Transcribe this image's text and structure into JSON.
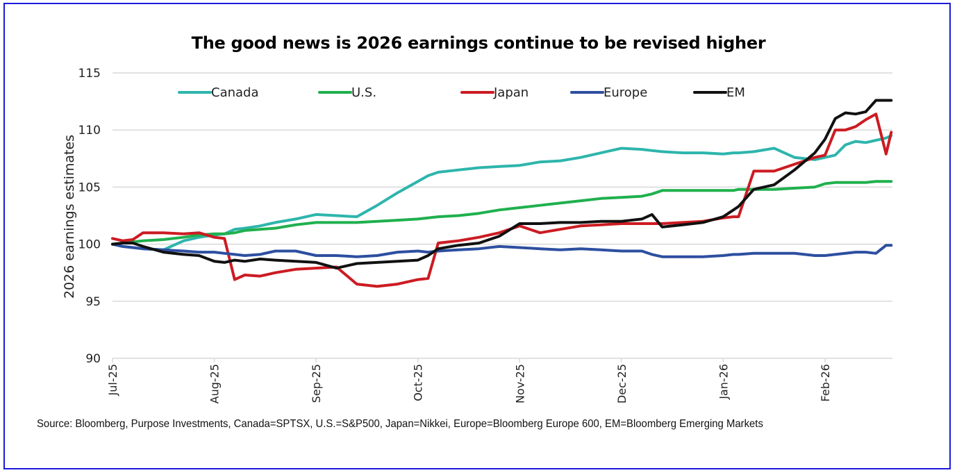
{
  "chart_data": {
    "type": "line",
    "title": "The good news is 2026 earnings continue to be revised higher",
    "xlabel": "",
    "ylabel": "2026 earnings estimates",
    "ylim": [
      90,
      115
    ],
    "yticks": [
      90,
      95,
      100,
      105,
      110,
      115
    ],
    "xticks": [
      "Jul-25",
      "Aug-25",
      "Sep-25",
      "Oct-25",
      "Nov-25",
      "Dec-25",
      "Jan-26",
      "Feb-26"
    ],
    "xlim_months": [
      0,
      7.65
    ],
    "grid": true,
    "legend_position": "top",
    "x": [
      0,
      0.1,
      0.2,
      0.3,
      0.5,
      0.7,
      0.85,
      1.0,
      1.1,
      1.2,
      1.3,
      1.45,
      1.6,
      1.8,
      2.0,
      2.2,
      2.4,
      2.6,
      2.8,
      3.0,
      3.1,
      3.2,
      3.4,
      3.6,
      3.8,
      4.0,
      4.2,
      4.4,
      4.6,
      4.8,
      5.0,
      5.2,
      5.3,
      5.4,
      5.6,
      5.8,
      6.0,
      6.1,
      6.15,
      6.3,
      6.5,
      6.7,
      6.9,
      7.0,
      7.1,
      7.2,
      7.3,
      7.4,
      7.5,
      7.6,
      7.65
    ],
    "series": [
      {
        "name": "Canada",
        "color": "#2eb5ac",
        "values": [
          100.0,
          99.8,
          99.7,
          99.6,
          99.5,
          100.3,
          100.6,
          100.8,
          100.9,
          101.3,
          101.4,
          101.6,
          101.9,
          102.2,
          102.6,
          102.5,
          102.4,
          103.4,
          104.5,
          105.5,
          106.0,
          106.3,
          106.5,
          106.7,
          106.8,
          106.9,
          107.2,
          107.3,
          107.6,
          108.0,
          108.4,
          108.3,
          108.2,
          108.1,
          108.0,
          108.0,
          107.9,
          108.0,
          108.0,
          108.1,
          108.4,
          107.6,
          107.4,
          107.6,
          107.8,
          108.7,
          109.0,
          108.9,
          109.1,
          109.3,
          109.5
        ]
      },
      {
        "name": "U.S.",
        "color": "#1fb04e",
        "values": [
          100.0,
          100.1,
          100.2,
          100.3,
          100.4,
          100.6,
          100.8,
          100.9,
          100.9,
          101.0,
          101.2,
          101.3,
          101.4,
          101.7,
          101.9,
          101.9,
          101.9,
          102.0,
          102.1,
          102.2,
          102.3,
          102.4,
          102.5,
          102.7,
          103.0,
          103.2,
          103.4,
          103.6,
          103.8,
          104.0,
          104.1,
          104.2,
          104.4,
          104.7,
          104.7,
          104.7,
          104.7,
          104.7,
          104.8,
          104.8,
          104.8,
          104.9,
          105.0,
          105.3,
          105.4,
          105.4,
          105.4,
          105.4,
          105.5,
          105.5,
          105.5
        ]
      },
      {
        "name": "Japan",
        "color": "#cc1b22",
        "values": [
          100.5,
          100.3,
          100.4,
          101.0,
          101.0,
          100.9,
          101.0,
          100.6,
          100.5,
          96.9,
          97.3,
          97.2,
          97.5,
          97.8,
          97.9,
          98.0,
          96.5,
          96.3,
          96.5,
          96.9,
          97.0,
          100.1,
          100.3,
          100.6,
          101.0,
          101.6,
          101.0,
          101.3,
          101.6,
          101.7,
          101.8,
          101.8,
          101.8,
          101.8,
          101.9,
          102.0,
          102.3,
          102.4,
          102.4,
          106.4,
          106.4,
          107.0,
          107.6,
          107.8,
          110.0,
          110.0,
          110.3,
          110.9,
          111.4,
          107.9,
          109.8
        ]
      },
      {
        "name": "Europe",
        "color": "#2d4fa0",
        "values": [
          100.0,
          99.8,
          99.7,
          99.6,
          99.5,
          99.4,
          99.3,
          99.3,
          99.2,
          99.1,
          99.0,
          99.1,
          99.4,
          99.4,
          99.0,
          99.0,
          98.9,
          99.0,
          99.3,
          99.4,
          99.3,
          99.4,
          99.5,
          99.6,
          99.8,
          99.7,
          99.6,
          99.5,
          99.6,
          99.5,
          99.4,
          99.4,
          99.1,
          98.9,
          98.9,
          98.9,
          99.0,
          99.1,
          99.1,
          99.2,
          99.2,
          99.2,
          99.0,
          99.0,
          99.1,
          99.2,
          99.3,
          99.3,
          99.2,
          99.9,
          99.9
        ]
      },
      {
        "name": "EM",
        "color": "#111111",
        "values": [
          100.0,
          100.1,
          100.1,
          99.8,
          99.3,
          99.1,
          99.0,
          98.5,
          98.4,
          98.6,
          98.5,
          98.7,
          98.6,
          98.5,
          98.4,
          97.9,
          98.3,
          98.4,
          98.5,
          98.6,
          99.0,
          99.6,
          99.9,
          100.1,
          100.7,
          101.8,
          101.8,
          101.9,
          101.9,
          102.0,
          102.0,
          102.2,
          102.6,
          101.5,
          101.7,
          101.9,
          102.4,
          103.0,
          103.3,
          104.8,
          105.2,
          106.5,
          108.0,
          109.2,
          111.0,
          111.5,
          111.4,
          111.6,
          112.6,
          112.6,
          112.6
        ]
      }
    ]
  },
  "source_note": "Source: Bloomberg, Purpose Investments, Canada=SPTSX, U.S.=S&P500, Japan=Nikkei, Europe=Bloomberg Europe 600, EM=Bloomberg Emerging Markets",
  "frame_color": "#1a1adb"
}
